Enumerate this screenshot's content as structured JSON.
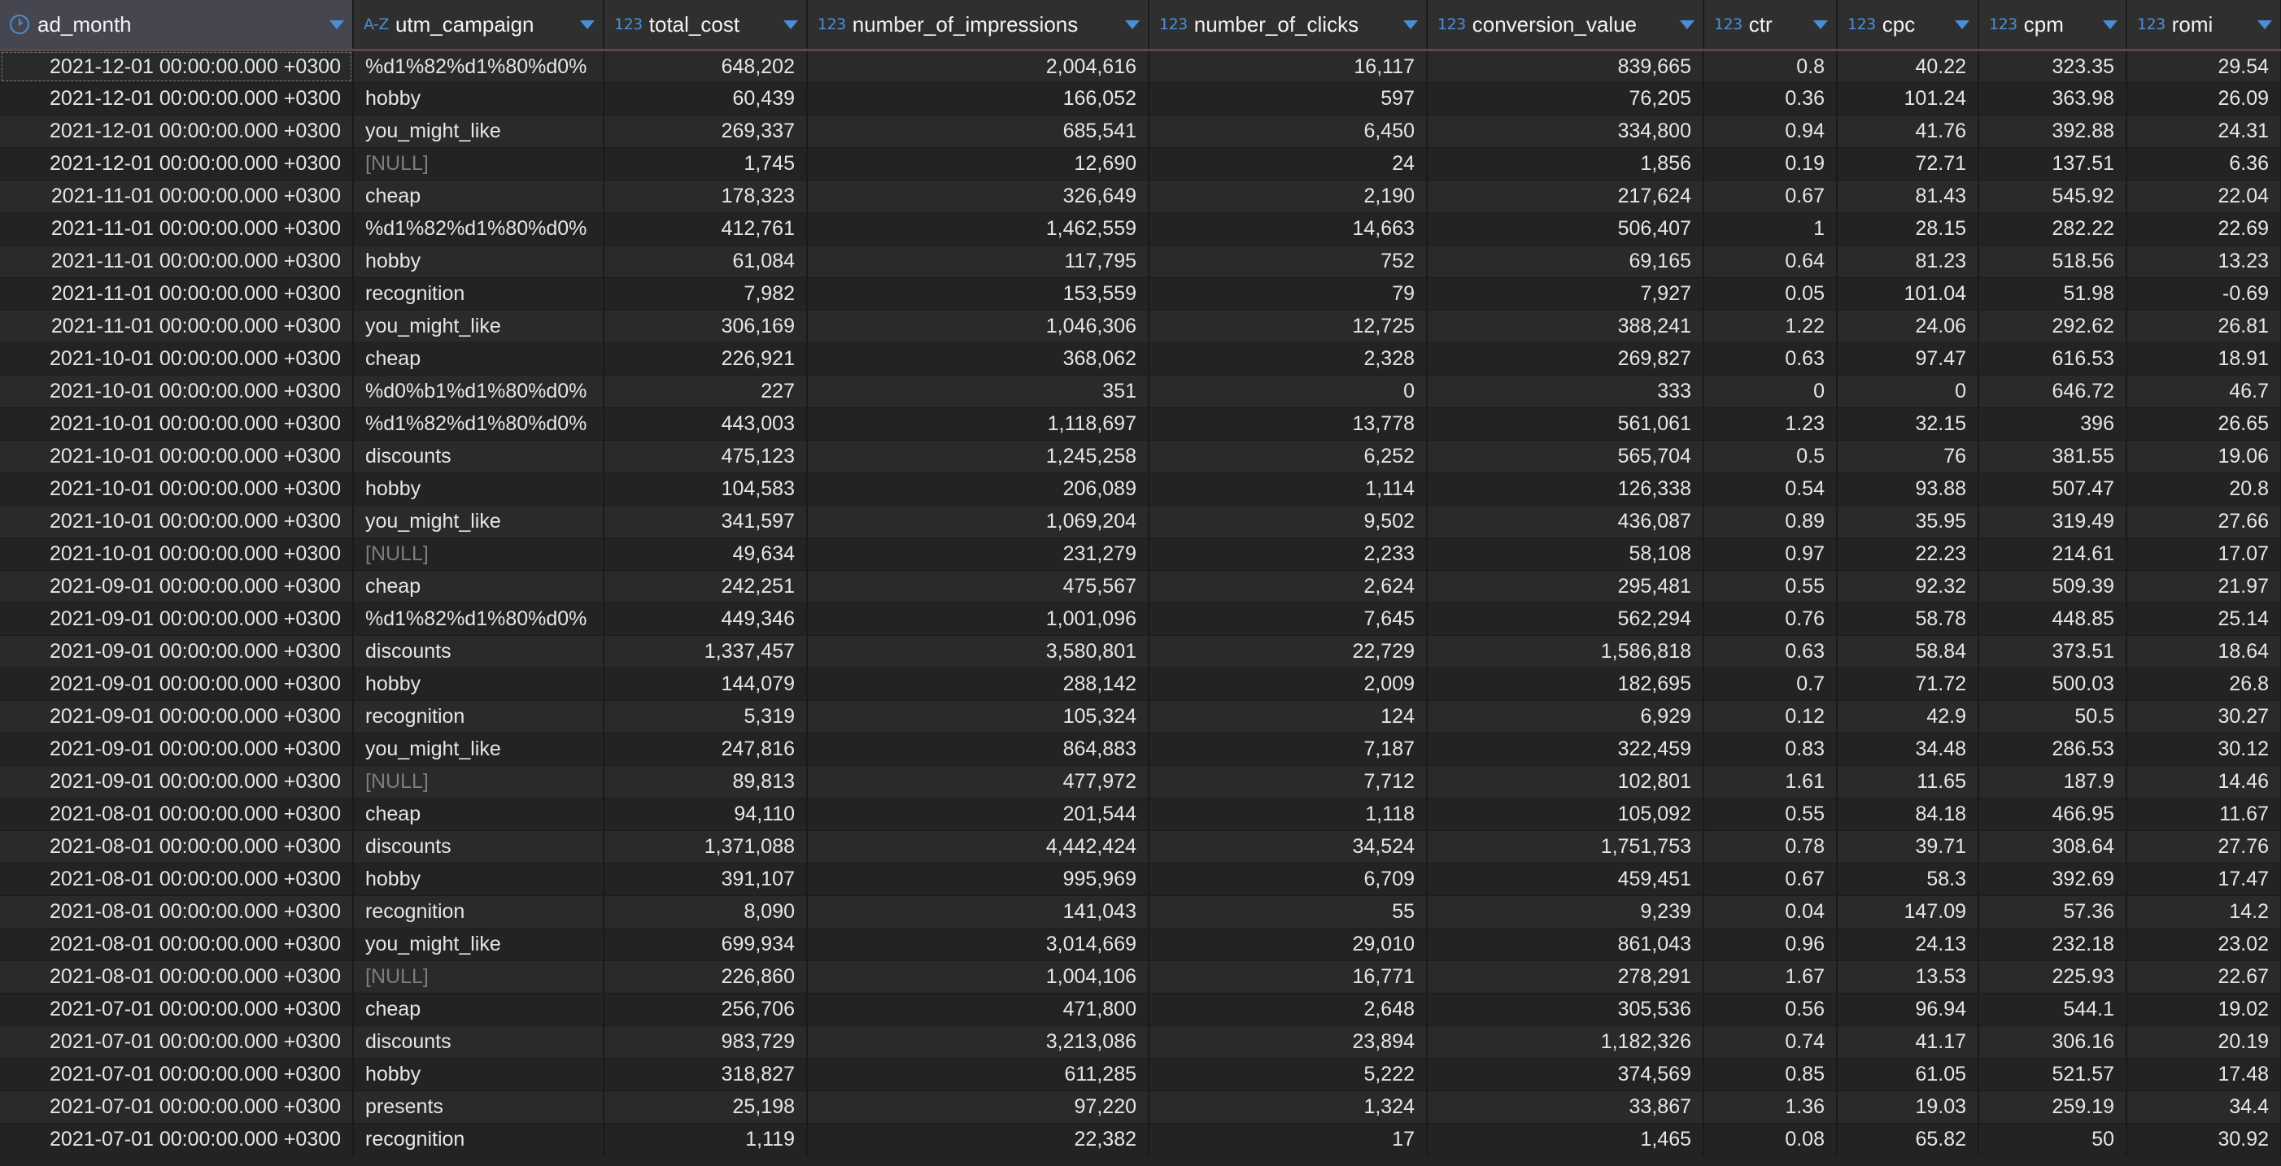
{
  "columns": [
    {
      "key": "ad_month",
      "label": "ad_month",
      "type_icon": "clock-icon",
      "type_text": "",
      "align": "date"
    },
    {
      "key": "utm_campaign",
      "label": "utm_campaign",
      "type_icon": "text-type-icon",
      "type_text": "A-Z",
      "align": "text"
    },
    {
      "key": "total_cost",
      "label": "total_cost",
      "type_icon": "number-type-icon",
      "type_text": "123",
      "align": "num"
    },
    {
      "key": "number_of_impressions",
      "label": "number_of_impressions",
      "type_icon": "number-type-icon",
      "type_text": "123",
      "align": "num"
    },
    {
      "key": "number_of_clicks",
      "label": "number_of_clicks",
      "type_icon": "number-type-icon",
      "type_text": "123",
      "align": "num"
    },
    {
      "key": "conversion_value",
      "label": "conversion_value",
      "type_icon": "number-type-icon",
      "type_text": "123",
      "align": "num"
    },
    {
      "key": "ctr",
      "label": "ctr",
      "type_icon": "number-type-icon",
      "type_text": "123",
      "align": "num"
    },
    {
      "key": "cpc",
      "label": "cpc",
      "type_icon": "number-type-icon",
      "type_text": "123",
      "align": "num"
    },
    {
      "key": "cpm",
      "label": "cpm",
      "type_icon": "number-type-icon",
      "type_text": "123",
      "align": "num"
    },
    {
      "key": "romi",
      "label": "romi",
      "type_icon": "number-type-icon",
      "type_text": "123",
      "align": "num"
    }
  ],
  "null_label": "[NULL]",
  "rows": [
    [
      "2021-12-01 00:00:00.000 +0300",
      "%d1%82%d1%80%d0%",
      "648,202",
      "2,004,616",
      "16,117",
      "839,665",
      "0.8",
      "40.22",
      "323.35",
      "29.54"
    ],
    [
      "2021-12-01 00:00:00.000 +0300",
      "hobby",
      "60,439",
      "166,052",
      "597",
      "76,205",
      "0.36",
      "101.24",
      "363.98",
      "26.09"
    ],
    [
      "2021-12-01 00:00:00.000 +0300",
      "you_might_like",
      "269,337",
      "685,541",
      "6,450",
      "334,800",
      "0.94",
      "41.76",
      "392.88",
      "24.31"
    ],
    [
      "2021-12-01 00:00:00.000 +0300",
      null,
      "1,745",
      "12,690",
      "24",
      "1,856",
      "0.19",
      "72.71",
      "137.51",
      "6.36"
    ],
    [
      "2021-11-01 00:00:00.000 +0300",
      "cheap",
      "178,323",
      "326,649",
      "2,190",
      "217,624",
      "0.67",
      "81.43",
      "545.92",
      "22.04"
    ],
    [
      "2021-11-01 00:00:00.000 +0300",
      "%d1%82%d1%80%d0%",
      "412,761",
      "1,462,559",
      "14,663",
      "506,407",
      "1",
      "28.15",
      "282.22",
      "22.69"
    ],
    [
      "2021-11-01 00:00:00.000 +0300",
      "hobby",
      "61,084",
      "117,795",
      "752",
      "69,165",
      "0.64",
      "81.23",
      "518.56",
      "13.23"
    ],
    [
      "2021-11-01 00:00:00.000 +0300",
      "recognition",
      "7,982",
      "153,559",
      "79",
      "7,927",
      "0.05",
      "101.04",
      "51.98",
      "-0.69"
    ],
    [
      "2021-11-01 00:00:00.000 +0300",
      "you_might_like",
      "306,169",
      "1,046,306",
      "12,725",
      "388,241",
      "1.22",
      "24.06",
      "292.62",
      "26.81"
    ],
    [
      "2021-10-01 00:00:00.000 +0300",
      "cheap",
      "226,921",
      "368,062",
      "2,328",
      "269,827",
      "0.63",
      "97.47",
      "616.53",
      "18.91"
    ],
    [
      "2021-10-01 00:00:00.000 +0300",
      "%d0%b1%d1%80%d0%",
      "227",
      "351",
      "0",
      "333",
      "0",
      "0",
      "646.72",
      "46.7"
    ],
    [
      "2021-10-01 00:00:00.000 +0300",
      "%d1%82%d1%80%d0%",
      "443,003",
      "1,118,697",
      "13,778",
      "561,061",
      "1.23",
      "32.15",
      "396",
      "26.65"
    ],
    [
      "2021-10-01 00:00:00.000 +0300",
      "discounts",
      "475,123",
      "1,245,258",
      "6,252",
      "565,704",
      "0.5",
      "76",
      "381.55",
      "19.06"
    ],
    [
      "2021-10-01 00:00:00.000 +0300",
      "hobby",
      "104,583",
      "206,089",
      "1,114",
      "126,338",
      "0.54",
      "93.88",
      "507.47",
      "20.8"
    ],
    [
      "2021-10-01 00:00:00.000 +0300",
      "you_might_like",
      "341,597",
      "1,069,204",
      "9,502",
      "436,087",
      "0.89",
      "35.95",
      "319.49",
      "27.66"
    ],
    [
      "2021-10-01 00:00:00.000 +0300",
      null,
      "49,634",
      "231,279",
      "2,233",
      "58,108",
      "0.97",
      "22.23",
      "214.61",
      "17.07"
    ],
    [
      "2021-09-01 00:00:00.000 +0300",
      "cheap",
      "242,251",
      "475,567",
      "2,624",
      "295,481",
      "0.55",
      "92.32",
      "509.39",
      "21.97"
    ],
    [
      "2021-09-01 00:00:00.000 +0300",
      "%d1%82%d1%80%d0%",
      "449,346",
      "1,001,096",
      "7,645",
      "562,294",
      "0.76",
      "58.78",
      "448.85",
      "25.14"
    ],
    [
      "2021-09-01 00:00:00.000 +0300",
      "discounts",
      "1,337,457",
      "3,580,801",
      "22,729",
      "1,586,818",
      "0.63",
      "58.84",
      "373.51",
      "18.64"
    ],
    [
      "2021-09-01 00:00:00.000 +0300",
      "hobby",
      "144,079",
      "288,142",
      "2,009",
      "182,695",
      "0.7",
      "71.72",
      "500.03",
      "26.8"
    ],
    [
      "2021-09-01 00:00:00.000 +0300",
      "recognition",
      "5,319",
      "105,324",
      "124",
      "6,929",
      "0.12",
      "42.9",
      "50.5",
      "30.27"
    ],
    [
      "2021-09-01 00:00:00.000 +0300",
      "you_might_like",
      "247,816",
      "864,883",
      "7,187",
      "322,459",
      "0.83",
      "34.48",
      "286.53",
      "30.12"
    ],
    [
      "2021-09-01 00:00:00.000 +0300",
      null,
      "89,813",
      "477,972",
      "7,712",
      "102,801",
      "1.61",
      "11.65",
      "187.9",
      "14.46"
    ],
    [
      "2021-08-01 00:00:00.000 +0300",
      "cheap",
      "94,110",
      "201,544",
      "1,118",
      "105,092",
      "0.55",
      "84.18",
      "466.95",
      "11.67"
    ],
    [
      "2021-08-01 00:00:00.000 +0300",
      "discounts",
      "1,371,088",
      "4,442,424",
      "34,524",
      "1,751,753",
      "0.78",
      "39.71",
      "308.64",
      "27.76"
    ],
    [
      "2021-08-01 00:00:00.000 +0300",
      "hobby",
      "391,107",
      "995,969",
      "6,709",
      "459,451",
      "0.67",
      "58.3",
      "392.69",
      "17.47"
    ],
    [
      "2021-08-01 00:00:00.000 +0300",
      "recognition",
      "8,090",
      "141,043",
      "55",
      "9,239",
      "0.04",
      "147.09",
      "57.36",
      "14.2"
    ],
    [
      "2021-08-01 00:00:00.000 +0300",
      "you_might_like",
      "699,934",
      "3,014,669",
      "29,010",
      "861,043",
      "0.96",
      "24.13",
      "232.18",
      "23.02"
    ],
    [
      "2021-08-01 00:00:00.000 +0300",
      null,
      "226,860",
      "1,004,106",
      "16,771",
      "278,291",
      "1.67",
      "13.53",
      "225.93",
      "22.67"
    ],
    [
      "2021-07-01 00:00:00.000 +0300",
      "cheap",
      "256,706",
      "471,800",
      "2,648",
      "305,536",
      "0.56",
      "96.94",
      "544.1",
      "19.02"
    ],
    [
      "2021-07-01 00:00:00.000 +0300",
      "discounts",
      "983,729",
      "3,213,086",
      "23,894",
      "1,182,326",
      "0.74",
      "41.17",
      "306.16",
      "20.19"
    ],
    [
      "2021-07-01 00:00:00.000 +0300",
      "hobby",
      "318,827",
      "611,285",
      "5,222",
      "374,569",
      "0.85",
      "61.05",
      "521.57",
      "17.48"
    ],
    [
      "2021-07-01 00:00:00.000 +0300",
      "presents",
      "25,198",
      "97,220",
      "1,324",
      "33,867",
      "1.36",
      "19.03",
      "259.19",
      "34.4"
    ],
    [
      "2021-07-01 00:00:00.000 +0300",
      "recognition",
      "1,119",
      "22,382",
      "17",
      "1,465",
      "0.08",
      "65.82",
      "50",
      "30.92"
    ]
  ],
  "colors": {
    "accent": "#4a8fd6",
    "header_bg": "#2f2f2f",
    "selected_header_bg": "#464650",
    "row_odd": "#2a2a2a",
    "row_even": "#232323",
    "null_text": "#7d7d7d"
  }
}
